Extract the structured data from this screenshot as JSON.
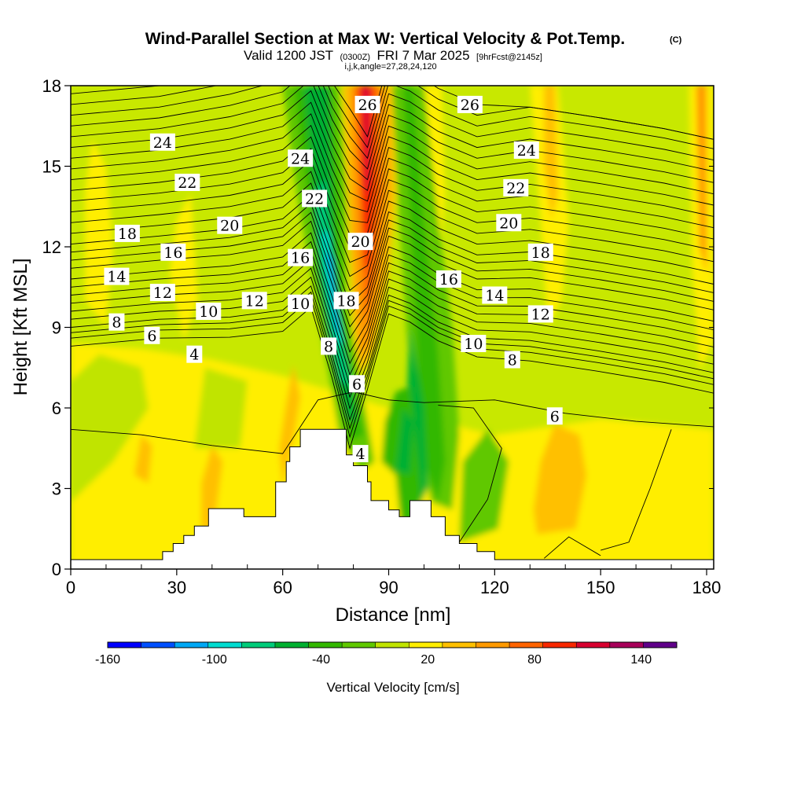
{
  "title": {
    "main": "Wind-Parallel Section at Max W: Vertical Velocity & Pot.Temp.",
    "copyright": "(C)",
    "valid_prefix": "Valid 1200 JST",
    "valid_utc": "(0300Z)",
    "valid_date": "FRI 7 Mar 2025",
    "forecast": "[9hrFcst@2145z]",
    "indices": "i,j,k,angle=27,28,24,120"
  },
  "chart_data": {
    "type": "heatmap",
    "xlabel": "Distance [nm]",
    "ylabel": "Height [Kft MSL]",
    "xlim": [
      0,
      182
    ],
    "ylim": [
      0,
      18
    ],
    "x_ticks": [
      0,
      30,
      60,
      90,
      120,
      150,
      180
    ],
    "y_ticks": [
      0,
      3,
      6,
      9,
      12,
      15,
      18
    ],
    "grid": false,
    "colorbar": {
      "label": "Vertical Velocity [cm/s]",
      "ticks": [
        "-160",
        "-100",
        "-40",
        "20",
        "80",
        "140"
      ],
      "tick_values": [
        -160,
        -100,
        -40,
        20,
        80,
        140
      ],
      "range": [
        -160,
        160
      ],
      "levels": [
        -160,
        -140,
        -120,
        -100,
        -80,
        -60,
        -40,
        -20,
        0,
        20,
        40,
        60,
        80,
        100,
        120,
        140,
        160
      ],
      "colors": [
        "#0000ff",
        "#0050ff",
        "#00a8f5",
        "#00dcd0",
        "#00cc7a",
        "#00b030",
        "#33b800",
        "#60c800",
        "#c0e400",
        "#ffee00",
        "#ffc000",
        "#ff9a00",
        "#ff6400",
        "#f82800",
        "#d80030",
        "#a8005a",
        "#60008a"
      ]
    },
    "terrain_profile": [
      {
        "x": 0,
        "h": 0.35
      },
      {
        "x": 26,
        "h": 0.35
      },
      {
        "x": 26,
        "h": 0.65
      },
      {
        "x": 29,
        "h": 0.65
      },
      {
        "x": 29,
        "h": 0.95
      },
      {
        "x": 32,
        "h": 0.95
      },
      {
        "x": 32,
        "h": 1.25
      },
      {
        "x": 35,
        "h": 1.25
      },
      {
        "x": 35,
        "h": 1.6
      },
      {
        "x": 39,
        "h": 1.6
      },
      {
        "x": 39,
        "h": 2.25
      },
      {
        "x": 49,
        "h": 2.25
      },
      {
        "x": 49,
        "h": 1.95
      },
      {
        "x": 58,
        "h": 1.95
      },
      {
        "x": 58,
        "h": 3.25
      },
      {
        "x": 61,
        "h": 3.25
      },
      {
        "x": 61,
        "h": 4.0
      },
      {
        "x": 62,
        "h": 4.0
      },
      {
        "x": 62,
        "h": 4.55
      },
      {
        "x": 65,
        "h": 4.55
      },
      {
        "x": 65,
        "h": 5.2
      },
      {
        "x": 78,
        "h": 5.2
      },
      {
        "x": 78,
        "h": 4.25
      },
      {
        "x": 80,
        "h": 4.25
      },
      {
        "x": 80,
        "h": 3.85
      },
      {
        "x": 84,
        "h": 3.85
      },
      {
        "x": 84,
        "h": 3.25
      },
      {
        "x": 85,
        "h": 3.25
      },
      {
        "x": 85,
        "h": 2.55
      },
      {
        "x": 90,
        "h": 2.55
      },
      {
        "x": 90,
        "h": 2.2
      },
      {
        "x": 93,
        "h": 2.2
      },
      {
        "x": 93,
        "h": 1.95
      },
      {
        "x": 96,
        "h": 1.95
      },
      {
        "x": 96,
        "h": 2.55
      },
      {
        "x": 102,
        "h": 2.55
      },
      {
        "x": 102,
        "h": 1.95
      },
      {
        "x": 106,
        "h": 1.95
      },
      {
        "x": 106,
        "h": 1.25
      },
      {
        "x": 110,
        "h": 1.25
      },
      {
        "x": 110,
        "h": 0.95
      },
      {
        "x": 115,
        "h": 0.95
      },
      {
        "x": 115,
        "h": 0.65
      },
      {
        "x": 120,
        "h": 0.65
      },
      {
        "x": 120,
        "h": 0.35
      },
      {
        "x": 182,
        "h": 0.35
      }
    ],
    "theta_contour_labels": [
      {
        "text": "26",
        "x": 84,
        "y": 17.3
      },
      {
        "text": "26",
        "x": 113,
        "y": 17.3
      },
      {
        "text": "24",
        "x": 26,
        "y": 15.9
      },
      {
        "text": "24",
        "x": 65,
        "y": 15.3
      },
      {
        "text": "24",
        "x": 129,
        "y": 15.6
      },
      {
        "text": "22",
        "x": 33,
        "y": 14.4
      },
      {
        "text": "22",
        "x": 69,
        "y": 13.8
      },
      {
        "text": "22",
        "x": 126,
        "y": 14.2
      },
      {
        "text": "20",
        "x": 45,
        "y": 12.8
      },
      {
        "text": "20",
        "x": 82,
        "y": 12.2
      },
      {
        "text": "20",
        "x": 124,
        "y": 12.9
      },
      {
        "text": "18",
        "x": 16,
        "y": 12.5
      },
      {
        "text": "18",
        "x": 78,
        "y": 10.0
      },
      {
        "text": "18",
        "x": 133,
        "y": 11.8
      },
      {
        "text": "16",
        "x": 29,
        "y": 11.8
      },
      {
        "text": "16",
        "x": 65,
        "y": 11.6
      },
      {
        "text": "16",
        "x": 107,
        "y": 10.8
      },
      {
        "text": "14",
        "x": 13,
        "y": 10.9
      },
      {
        "text": "14",
        "x": 120,
        "y": 10.2
      },
      {
        "text": "12",
        "x": 26,
        "y": 10.3
      },
      {
        "text": "12",
        "x": 52,
        "y": 10.0
      },
      {
        "text": "12",
        "x": 133,
        "y": 9.5
      },
      {
        "text": "10",
        "x": 39,
        "y": 9.6
      },
      {
        "text": "10",
        "x": 65,
        "y": 9.9
      },
      {
        "text": "10",
        "x": 114,
        "y": 8.4
      },
      {
        "text": "8",
        "x": 13,
        "y": 9.2
      },
      {
        "text": "8",
        "x": 73,
        "y": 8.3
      },
      {
        "text": "8",
        "x": 125,
        "y": 7.8
      },
      {
        "text": "6",
        "x": 23,
        "y": 8.7
      },
      {
        "text": "6",
        "x": 81,
        "y": 6.9
      },
      {
        "text": "6",
        "x": 137,
        "y": 5.7
      },
      {
        "text": "4",
        "x": 35,
        "y": 8.0
      },
      {
        "text": "4",
        "x": 82,
        "y": 4.3
      }
    ]
  }
}
